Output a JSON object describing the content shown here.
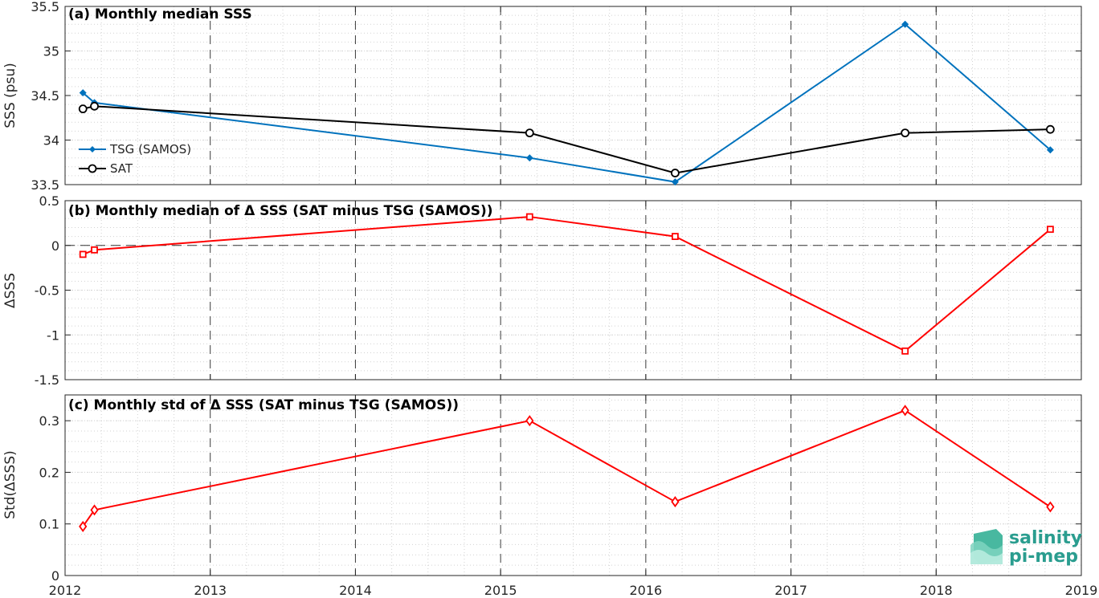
{
  "chart_data": [
    {
      "type": "line",
      "title": "(a) Monthly median SSS",
      "xlabel": "",
      "ylabel": "SSS (psu)",
      "xlim": [
        "2012-01-01",
        "2019-01-01"
      ],
      "ylim": [
        33.5,
        35.5
      ],
      "yticks": [
        "33.5",
        "34",
        "34.5",
        "35",
        "35.5"
      ],
      "grid": true,
      "legend_position": "lower-left",
      "series": [
        {
          "name": "TSG (SAMOS)",
          "color": "#0072bd",
          "marker": "filled-diamond",
          "x": [
            "2012-02-15",
            "2012-03-15",
            "2015-03-15",
            "2016-03-15",
            "2017-10-15",
            "2018-10-15"
          ],
          "values": [
            34.53,
            34.42,
            33.8,
            33.53,
            35.3,
            33.89
          ]
        },
        {
          "name": "SAT",
          "color": "#000000",
          "marker": "open-circle",
          "x": [
            "2012-02-15",
            "2012-03-15",
            "2015-03-15",
            "2016-03-15",
            "2017-10-15",
            "2018-10-15"
          ],
          "values": [
            34.35,
            34.38,
            34.08,
            33.63,
            34.08,
            34.12
          ]
        }
      ]
    },
    {
      "type": "line",
      "title": "(b) Monthly median of Δ SSS (SAT minus TSG (SAMOS))",
      "xlabel": "",
      "ylabel": "ΔSSS",
      "xlim": [
        "2012-01-01",
        "2019-01-01"
      ],
      "ylim": [
        -1.5,
        0.5
      ],
      "yticks": [
        "-1.5",
        "-1",
        "-0.5",
        "0",
        "0.5"
      ],
      "grid": true,
      "zero_line": true,
      "series": [
        {
          "color": "#ff0000",
          "marker": "open-square",
          "x": [
            "2012-02-15",
            "2012-03-15",
            "2015-03-15",
            "2016-03-15",
            "2017-10-15",
            "2018-10-15"
          ],
          "values": [
            -0.1,
            -0.05,
            0.32,
            0.1,
            -1.18,
            0.18
          ]
        }
      ]
    },
    {
      "type": "line",
      "title": "(c) Monthly std of Δ SSS (SAT minus TSG (SAMOS))",
      "xlabel": "",
      "ylabel": "Std(ΔSSS)",
      "xlim": [
        "2012-01-01",
        "2019-01-01"
      ],
      "ylim": [
        0,
        0.35
      ],
      "yticks": [
        "0",
        "0.1",
        "0.2",
        "0.3"
      ],
      "xticks": [
        "2012",
        "2013",
        "2014",
        "2015",
        "2016",
        "2017",
        "2018",
        "2019"
      ],
      "grid": true,
      "series": [
        {
          "color": "#ff0000",
          "marker": "open-diamond",
          "x": [
            "2012-02-15",
            "2012-03-15",
            "2015-03-15",
            "2016-03-15",
            "2017-10-15",
            "2018-10-15"
          ],
          "values": [
            0.095,
            0.127,
            0.3,
            0.143,
            0.32,
            0.133
          ]
        }
      ]
    }
  ],
  "logo": {
    "line1": "salinity",
    "line2": "pi-mep"
  }
}
